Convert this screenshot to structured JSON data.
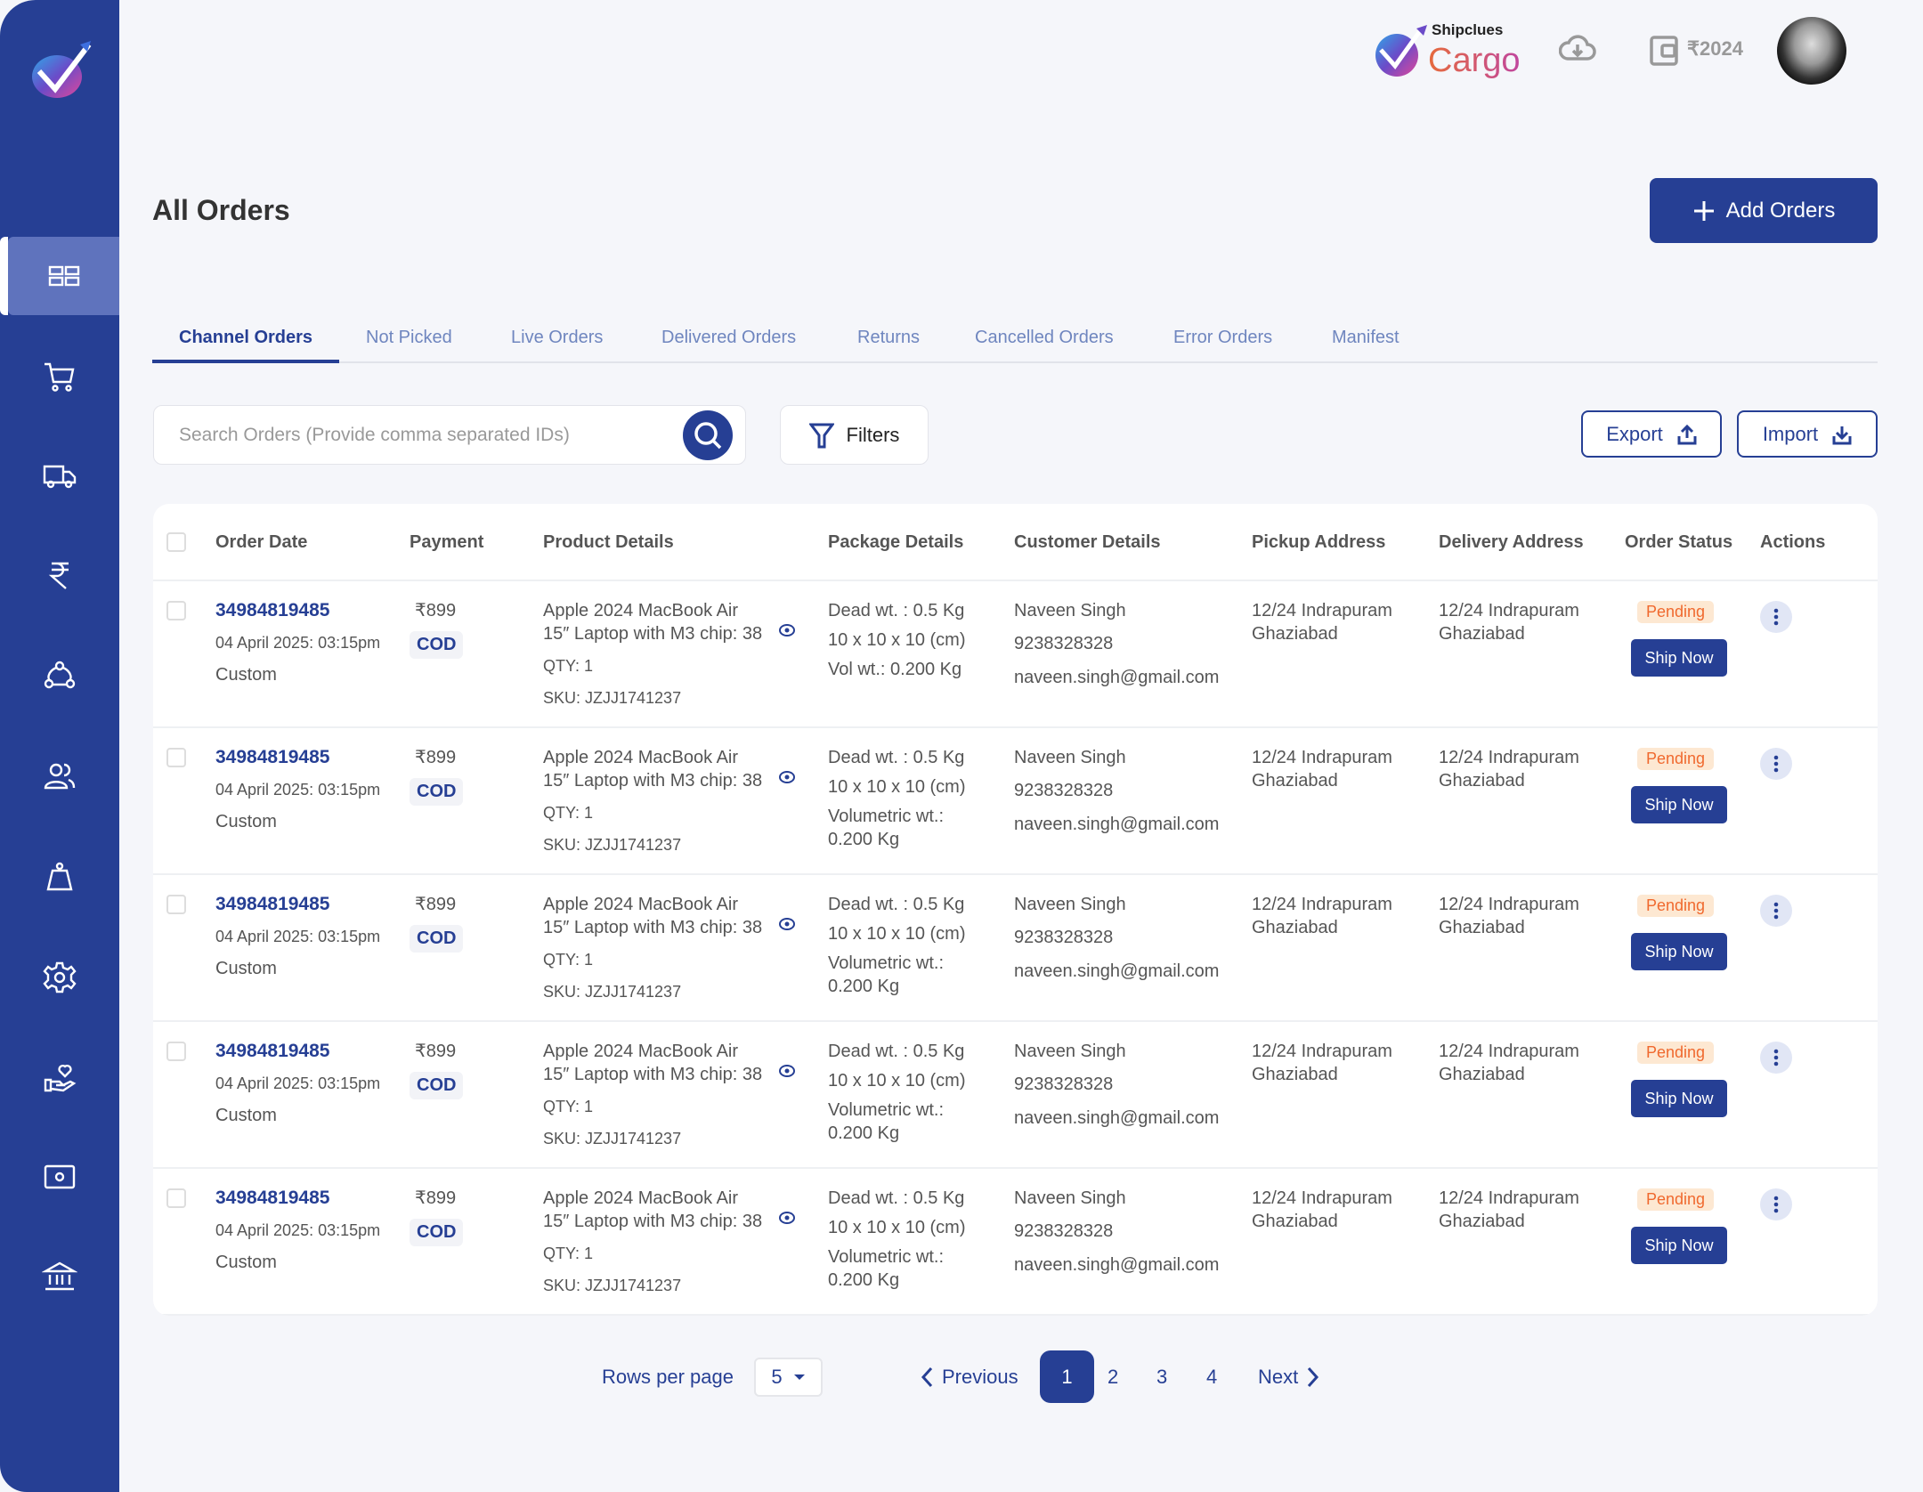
{
  "brand": {
    "name_small": "Shipclues",
    "name_big": "Cargo",
    "accent": "#263f94"
  },
  "header": {
    "wallet_balance": "₹2024",
    "icons": [
      "cloud-download-icon",
      "wallet-icon",
      "avatar"
    ]
  },
  "sidebar": {
    "items": [
      {
        "name": "dashboard",
        "icon": "grid-icon",
        "active": true
      },
      {
        "name": "orders",
        "icon": "cart-icon"
      },
      {
        "name": "shipments",
        "icon": "truck-icon"
      },
      {
        "name": "finance",
        "icon": "rupee-icon"
      },
      {
        "name": "channels",
        "icon": "network-icon"
      },
      {
        "name": "customers",
        "icon": "users-icon"
      },
      {
        "name": "weight",
        "icon": "weight-icon"
      },
      {
        "name": "settings",
        "icon": "gear-icon"
      },
      {
        "name": "support",
        "icon": "hand-heart-icon"
      },
      {
        "name": "tools",
        "icon": "settings-panel-icon"
      },
      {
        "name": "bank",
        "icon": "bank-icon"
      }
    ]
  },
  "page": {
    "title": "All Orders",
    "add_button": "Add Orders"
  },
  "tabs": [
    {
      "label": "Channel Orders",
      "active": true
    },
    {
      "label": "Not Picked"
    },
    {
      "label": "Live Orders"
    },
    {
      "label": "Delivered Orders"
    },
    {
      "label": "Returns"
    },
    {
      "label": "Cancelled Orders"
    },
    {
      "label": "Error Orders"
    },
    {
      "label": "Manifest"
    }
  ],
  "toolbar": {
    "search_placeholder": "Search Orders (Provide comma separated IDs)",
    "filters": "Filters",
    "export": "Export",
    "import": "Import"
  },
  "table": {
    "headers": [
      "Order Date",
      "Payment",
      "Product Details",
      "Package Details",
      "Customer Details",
      "Pickup Address",
      "Delivery Address",
      "Order Status",
      "Actions"
    ],
    "rows": [
      {
        "order_id": "34984819485",
        "date": "04 April 2025: 03:15pm",
        "channel": "Custom",
        "amount": "₹899",
        "payment": "COD",
        "product_line1": "Apple 2024 MacBook Air",
        "product_line2": "15″ Laptop with M3 chip: 38",
        "qty": "QTY: 1",
        "sku": "SKU: JZJJ1741237",
        "dead_wt": "Dead wt. : 0.5 Kg",
        "dims": "10 x 10 x 10 (cm)",
        "vol_label": "Vol wt.:  0.200 Kg",
        "vol_value": "",
        "customer_name": "Naveen Singh",
        "phone": "9238328328",
        "email": "naveen.singh@gmail.com",
        "pickup_line1": "12/24 Indrapuram",
        "pickup_line2": "Ghaziabad",
        "delivery_line1": "12/24 Indrapuram",
        "delivery_line2": "Ghaziabad",
        "status": "Pending",
        "action": "Ship Now"
      },
      {
        "order_id": "34984819485",
        "date": "04 April 2025: 03:15pm",
        "channel": "Custom",
        "amount": "₹899",
        "payment": "COD",
        "product_line1": "Apple 2024 MacBook Air",
        "product_line2": "15″ Laptop with M3 chip: 38",
        "qty": "QTY: 1",
        "sku": "SKU: JZJJ1741237",
        "dead_wt": "Dead wt. : 0.5 Kg",
        "dims": "10 x 10 x 10 (cm)",
        "vol_label": "Volumetric wt.:",
        "vol_value": "0.200 Kg",
        "customer_name": "Naveen Singh",
        "phone": "9238328328",
        "email": "naveen.singh@gmail.com",
        "pickup_line1": "12/24 Indrapuram",
        "pickup_line2": "Ghaziabad",
        "delivery_line1": "12/24 Indrapuram",
        "delivery_line2": "Ghaziabad",
        "status": "Pending",
        "action": "Ship Now"
      },
      {
        "order_id": "34984819485",
        "date": "04 April 2025: 03:15pm",
        "channel": "Custom",
        "amount": "₹899",
        "payment": "COD",
        "product_line1": "Apple 2024 MacBook Air",
        "product_line2": "15″ Laptop with M3 chip: 38",
        "qty": "QTY: 1",
        "sku": "SKU: JZJJ1741237",
        "dead_wt": "Dead wt. : 0.5 Kg",
        "dims": "10 x 10 x 10 (cm)",
        "vol_label": "Volumetric wt.:",
        "vol_value": "0.200 Kg",
        "customer_name": "Naveen Singh",
        "phone": "9238328328",
        "email": "naveen.singh@gmail.com",
        "pickup_line1": "12/24 Indrapuram",
        "pickup_line2": "Ghaziabad",
        "delivery_line1": "12/24 Indrapuram",
        "delivery_line2": "Ghaziabad",
        "status": "Pending",
        "action": "Ship Now"
      },
      {
        "order_id": "34984819485",
        "date": "04 April 2025: 03:15pm",
        "channel": "Custom",
        "amount": "₹899",
        "payment": "COD",
        "product_line1": "Apple 2024 MacBook Air",
        "product_line2": "15″ Laptop with M3 chip: 38",
        "qty": "QTY: 1",
        "sku": "SKU: JZJJ1741237",
        "dead_wt": "Dead wt. : 0.5 Kg",
        "dims": "10 x 10 x 10 (cm)",
        "vol_label": "Volumetric wt.:",
        "vol_value": "0.200 Kg",
        "customer_name": "Naveen Singh",
        "phone": "9238328328",
        "email": "naveen.singh@gmail.com",
        "pickup_line1": "12/24 Indrapuram",
        "pickup_line2": "Ghaziabad",
        "delivery_line1": "12/24 Indrapuram",
        "delivery_line2": "Ghaziabad",
        "status": "Pending",
        "action": "Ship Now"
      },
      {
        "order_id": "34984819485",
        "date": "04 April 2025: 03:15pm",
        "channel": "Custom",
        "amount": "₹899",
        "payment": "COD",
        "product_line1": "Apple 2024 MacBook Air",
        "product_line2": "15″ Laptop with M3 chip: 38",
        "qty": "QTY: 1",
        "sku": "SKU: JZJJ1741237",
        "dead_wt": "Dead wt. : 0.5 Kg",
        "dims": "10 x 10 x 10 (cm)",
        "vol_label": "Volumetric wt.:",
        "vol_value": "0.200 Kg",
        "customer_name": "Naveen Singh",
        "phone": "9238328328",
        "email": "naveen.singh@gmail.com",
        "pickup_line1": "12/24 Indrapuram",
        "pickup_line2": "Ghaziabad",
        "delivery_line1": "12/24 Indrapuram",
        "delivery_line2": "Ghaziabad",
        "status": "Pending",
        "action": "Ship Now"
      }
    ]
  },
  "pagination": {
    "rows_per_page_label": "Rows per page",
    "rows_per_page": "5",
    "previous": "Previous",
    "next": "Next",
    "pages": [
      "1",
      "2",
      "3",
      "4"
    ],
    "current": "1"
  }
}
